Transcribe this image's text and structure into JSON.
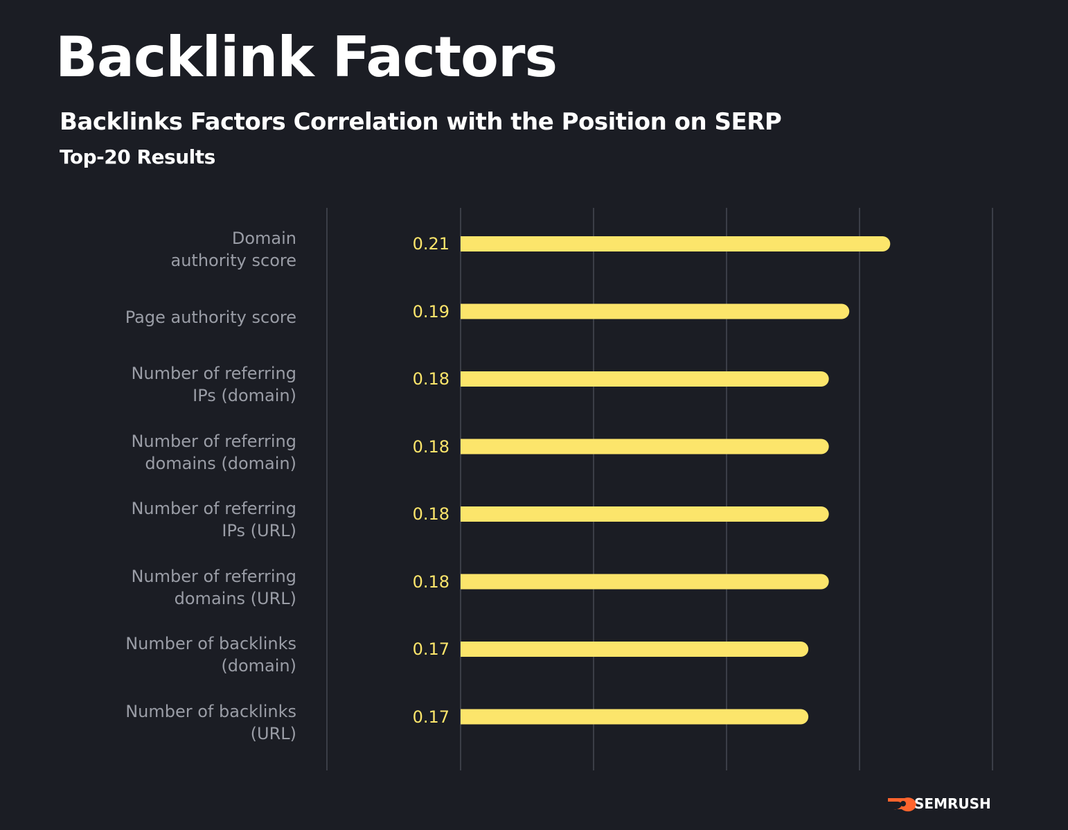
{
  "chart_data": {
    "type": "barh",
    "title": "Backlink Factors",
    "subtitle": "Backlinks Factors Correlation with the Position on SERP",
    "caption": "Top-20 Results",
    "categories": [
      "Domain\nauthority score",
      "Page authority score",
      "Number of referring\nIPs (domain)",
      "Number of referring\ndomains (domain)",
      "Number of referring\nIPs (URL)",
      "Number of referring\ndomains (URL)",
      "Number of backlinks\n(domain)",
      "Number of backlinks\n(URL)"
    ],
    "values": [
      0.21,
      0.19,
      0.18,
      0.18,
      0.18,
      0.18,
      0.17,
      0.17
    ],
    "color": "#fce56b",
    "xlim": [
      0,
      0.26
    ]
  },
  "brand": "SEMRUSH"
}
